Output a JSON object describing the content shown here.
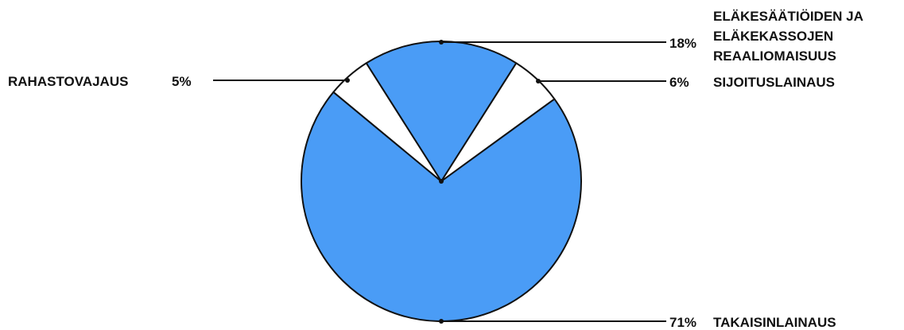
{
  "chart_data": {
    "type": "pie",
    "title": "",
    "slices": [
      {
        "pct_label": "18%",
        "label_lines": [
          "ELÄKESÄÄTIÖIDEN JA",
          "ELÄKEKASSOJEN",
          "REAALIOMAISUUS"
        ],
        "value": 18,
        "color": "#4a9cf6"
      },
      {
        "pct_label": "6%",
        "label_lines": [
          "SIJOITUSLAINAUS"
        ],
        "value": 6,
        "color": "#ffffff"
      },
      {
        "pct_label": "71%",
        "label_lines": [
          "TAKAISINLAINAUS"
        ],
        "value": 71,
        "color": "#4a9cf6"
      },
      {
        "pct_label": "5%",
        "label_lines": [
          "RAHASTOVAJAUS"
        ],
        "value": 5,
        "color": "#ffffff"
      }
    ],
    "legend": "none",
    "outline_color": "#111111"
  }
}
